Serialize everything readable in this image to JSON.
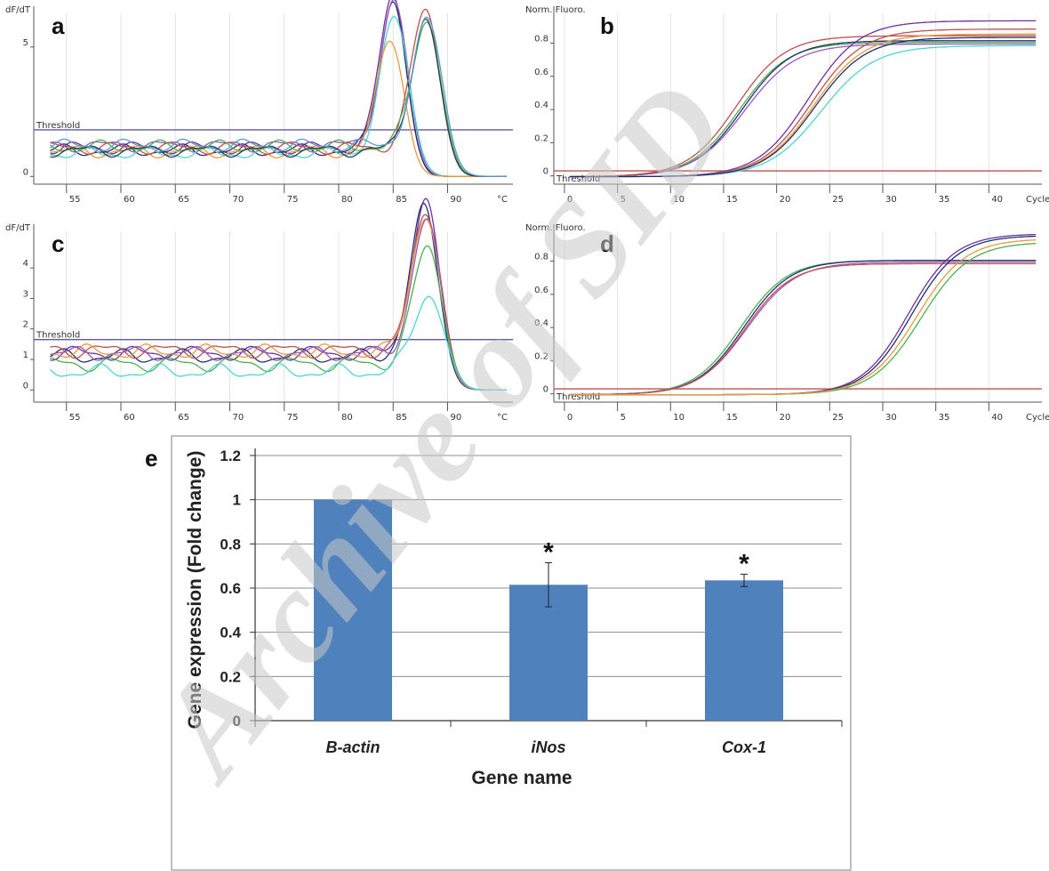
{
  "watermark": "Archive of SID",
  "chart_data": [
    {
      "panel": "a",
      "letter": "a",
      "type": "line",
      "ylabel": "dF/dT",
      "xunit": "°C",
      "threshold_label": "Threshold",
      "threshold": 1.8,
      "xlim": [
        52,
        96
      ],
      "ylim": [
        -0.3,
        6.3
      ],
      "xticks": [
        55,
        60,
        65,
        70,
        75,
        80,
        85,
        90
      ],
      "yticks": [
        0,
        5
      ],
      "series": [
        {
          "color": "#7030a0",
          "peak": 85.0,
          "height": 6.0,
          "width": 1.2,
          "base": 1.1
        },
        {
          "color": "#1f2f6f",
          "peak": 85.0,
          "height": 5.9,
          "width": 1.2,
          "base": 1.0
        },
        {
          "color": "#9b59b6",
          "peak": 85.1,
          "height": 5.6,
          "width": 1.25,
          "base": 1.2
        },
        {
          "color": "#4dd4d4",
          "peak": 85.2,
          "height": 5.3,
          "width": 1.3,
          "base": 0.9
        },
        {
          "color": "#e89a3c",
          "peak": 84.8,
          "height": 4.5,
          "width": 1.2,
          "base": 0.95
        },
        {
          "color": "#c0504d",
          "peak": 88.0,
          "height": 5.4,
          "width": 1.3,
          "base": 1.1
        },
        {
          "color": "#4caf50",
          "peak": 88.1,
          "height": 5.0,
          "width": 1.3,
          "base": 1.15
        },
        {
          "color": "#2c3e50",
          "peak": 88.0,
          "height": 5.1,
          "width": 1.3,
          "base": 1.0
        },
        {
          "color": "#5b9bd5",
          "peak": 88.2,
          "height": 4.9,
          "width": 1.35,
          "base": 1.2
        }
      ]
    },
    {
      "panel": "b",
      "letter": "b",
      "type": "line",
      "ylabel": "Norm. Fluoro.",
      "xunit": "Cycle",
      "threshold_label": "Threshold",
      "threshold": 0.03,
      "xlim": [
        -1,
        45
      ],
      "ylim": [
        -0.05,
        0.98
      ],
      "xticks": [
        0,
        5,
        10,
        15,
        20,
        25,
        30,
        35,
        40
      ],
      "yticks": [
        0,
        0.2,
        0.4,
        0.6,
        0.8
      ],
      "series": [
        {
          "color": "#4caf50",
          "mid": 16.5,
          "plateau": 0.81,
          "slope": 2.3
        },
        {
          "color": "#1f2f6f",
          "mid": 16.8,
          "plateau": 0.82,
          "slope": 2.3
        },
        {
          "color": "#9b59b6",
          "mid": 17.0,
          "plateau": 0.8,
          "slope": 2.4
        },
        {
          "color": "#c0504d",
          "mid": 16.2,
          "plateau": 0.85,
          "slope": 2.3
        },
        {
          "color": "#7030a0",
          "mid": 23.0,
          "plateau": 0.94,
          "slope": 2.4
        },
        {
          "color": "#c0504d",
          "mid": 23.3,
          "plateau": 0.89,
          "slope": 2.4
        },
        {
          "color": "#e89a3c",
          "mid": 23.5,
          "plateau": 0.86,
          "slope": 2.4
        },
        {
          "color": "#4dd4d4",
          "mid": 24.2,
          "plateau": 0.79,
          "slope": 2.5
        },
        {
          "color": "#1f2f6f",
          "mid": 23.6,
          "plateau": 0.84,
          "slope": 2.4
        }
      ]
    },
    {
      "panel": "c",
      "letter": "c",
      "type": "line",
      "ylabel": "dF/dT",
      "xunit": "°C",
      "threshold_label": "Threshold",
      "threshold": 1.65,
      "xlim": [
        52,
        96
      ],
      "ylim": [
        -0.4,
        5.2
      ],
      "xticks": [
        55,
        60,
        65,
        70,
        75,
        80,
        85,
        90
      ],
      "yticks": [
        0,
        1,
        2,
        3,
        4
      ],
      "series": [
        {
          "color": "#7030a0",
          "peak": 88.0,
          "height": 5.0,
          "width": 1.3,
          "base": 1.2
        },
        {
          "color": "#1f2f6f",
          "peak": 87.9,
          "height": 4.9,
          "width": 1.3,
          "base": 1.1
        },
        {
          "color": "#c0504d",
          "peak": 88.1,
          "height": 4.7,
          "width": 1.3,
          "base": 1.3
        },
        {
          "color": "#e89a3c",
          "peak": 88.0,
          "height": 4.6,
          "width": 1.3,
          "base": 1.25
        },
        {
          "color": "#9b59b6",
          "peak": 88.1,
          "height": 4.4,
          "width": 1.3,
          "base": 1.2
        },
        {
          "color": "#4caf50",
          "peak": 88.2,
          "height": 3.9,
          "width": 1.35,
          "base": 0.85
        },
        {
          "color": "#4dd4d4",
          "peak": 88.3,
          "height": 2.6,
          "width": 1.4,
          "base": 0.6
        }
      ]
    },
    {
      "panel": "d",
      "letter": "d",
      "type": "line",
      "ylabel": "Norm. Fluoro.",
      "xunit": "Cycle",
      "threshold_label": "Threshold",
      "threshold": 0.03,
      "xlim": [
        -1,
        45
      ],
      "ylim": [
        -0.05,
        0.98
      ],
      "xticks": [
        0,
        5,
        10,
        15,
        20,
        25,
        30,
        35,
        40
      ],
      "yticks": [
        0,
        0.2,
        0.4,
        0.6,
        0.8
      ],
      "series": [
        {
          "color": "#4caf50",
          "mid": 16.6,
          "plateau": 0.81,
          "slope": 2.2
        },
        {
          "color": "#1f2f6f",
          "mid": 16.9,
          "plateau": 0.81,
          "slope": 2.2
        },
        {
          "color": "#9b59b6",
          "mid": 17.2,
          "plateau": 0.8,
          "slope": 2.3
        },
        {
          "color": "#c0504d",
          "mid": 17.0,
          "plateau": 0.79,
          "slope": 2.2
        },
        {
          "color": "#7030a0",
          "mid": 32.4,
          "plateau": 0.97,
          "slope": 2.2
        },
        {
          "color": "#1f2f6f",
          "mid": 32.7,
          "plateau": 0.96,
          "slope": 2.2
        },
        {
          "color": "#4caf50",
          "mid": 33.6,
          "plateau": 0.92,
          "slope": 2.3
        },
        {
          "color": "#e89a3c",
          "mid": 33.2,
          "plateau": 0.94,
          "slope": 2.3
        }
      ]
    },
    {
      "panel": "e",
      "letter": "e",
      "type": "bar",
      "categories": [
        "B-actin",
        "iNos",
        "Cox-1"
      ],
      "values": [
        1.0,
        0.615,
        0.635
      ],
      "errors": [
        0.0,
        0.1,
        0.028
      ],
      "significance": [
        "",
        "*",
        "*"
      ],
      "xlabel": "Gene name",
      "ylabel": "Gene expression (Fold change)",
      "ylim": [
        0,
        1.2
      ],
      "yticks": [
        "0",
        "0.2",
        "0.4",
        "0.6",
        "0.8",
        "1",
        "1.2"
      ],
      "bar_color": "#4f81bd",
      "grid": true
    }
  ]
}
